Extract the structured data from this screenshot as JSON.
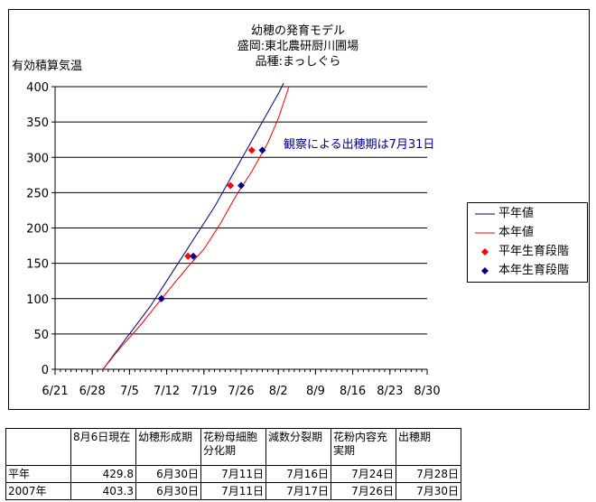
{
  "chart_data": {
    "type": "line",
    "title_lines": [
      "幼穂の発育モデル",
      "盛岡:東北農研厨川圃場",
      "品種:まっしぐら"
    ],
    "ylabel": "有効積算気温",
    "xlabel": "",
    "ylim": [
      0,
      400
    ],
    "yticks": [
      0,
      50,
      100,
      150,
      200,
      250,
      300,
      350,
      400
    ],
    "x_range_days": [
      "6/21",
      "8/30"
    ],
    "xticks": [
      "6/21",
      "6/28",
      "7/5",
      "7/12",
      "7/19",
      "7/26",
      "8/2",
      "8/9",
      "8/16",
      "8/23",
      "8/30"
    ],
    "grid": "horizontal",
    "legend_position": "right",
    "annotation": "観察による出穂期は7月31日",
    "series": [
      {
        "name": "平年値",
        "style": "line",
        "color": "#000080",
        "points": [
          [
            "6/30",
            0
          ],
          [
            "7/3",
            30
          ],
          [
            "7/6",
            60
          ],
          [
            "7/9",
            90
          ],
          [
            "7/12",
            125
          ],
          [
            "7/15",
            160
          ],
          [
            "7/18",
            195
          ],
          [
            "7/21",
            230
          ],
          [
            "7/24",
            270
          ],
          [
            "7/27",
            310
          ],
          [
            "7/30",
            350
          ],
          [
            "8/2",
            390
          ],
          [
            "8/3",
            405
          ]
        ]
      },
      {
        "name": "本年値",
        "style": "line",
        "color": "#ff0000",
        "points": [
          [
            "6/30",
            0
          ],
          [
            "7/3",
            28
          ],
          [
            "7/7",
            62
          ],
          [
            "7/10",
            90
          ],
          [
            "7/13",
            118
          ],
          [
            "7/16",
            145
          ],
          [
            "7/19",
            170
          ],
          [
            "7/22",
            205
          ],
          [
            "7/25",
            245
          ],
          [
            "7/28",
            280
          ],
          [
            "7/31",
            320
          ],
          [
            "8/2",
            355
          ],
          [
            "8/4",
            400
          ]
        ]
      },
      {
        "name": "平年生育段階",
        "style": "marker",
        "color": "#ff0000",
        "points": [
          [
            "7/11",
            100
          ],
          [
            "7/16",
            160
          ],
          [
            "7/24",
            260
          ],
          [
            "7/28",
            310
          ]
        ]
      },
      {
        "name": "本年生育段階",
        "style": "marker",
        "color": "#000080",
        "points": [
          [
            "7/11",
            100
          ],
          [
            "7/17",
            160
          ],
          [
            "7/26",
            260
          ],
          [
            "7/30",
            310
          ]
        ]
      }
    ]
  },
  "table": {
    "headers": [
      "",
      "8月6日現在",
      "幼穂形成期",
      "花粉母細胞分化期",
      "減数分裂期",
      "花粉内容充実期",
      "出穂期"
    ],
    "rows": [
      [
        "平年",
        "429.8",
        "6月30日",
        "7月11日",
        "7月16日",
        "7月24日",
        "7月28日"
      ],
      [
        "2007年",
        "403.3",
        "6月30日",
        "7月11日",
        "7月17日",
        "7月26日",
        "7月30日"
      ]
    ]
  }
}
